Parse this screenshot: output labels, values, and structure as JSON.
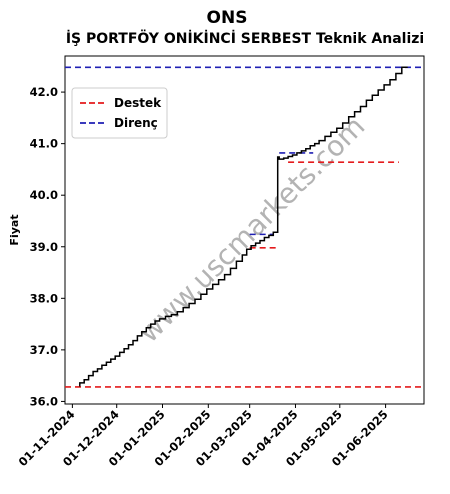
{
  "chart_data": {
    "type": "line",
    "title": "ONS",
    "subtitle": "İŞ PORTFÖY ONİKİNCİ SERBEST Teknik Analizi",
    "xlabel": "",
    "ylabel": "Fiyat",
    "ylim": [
      35.95,
      42.7
    ],
    "xlim": [
      "2024-10-27",
      "2025-06-27"
    ],
    "yticks": [
      36.0,
      37.0,
      38.0,
      39.0,
      40.0,
      41.0,
      42.0
    ],
    "ytick_labels": [
      "36.0",
      "37.0",
      "38.0",
      "39.0",
      "40.0",
      "41.0",
      "42.0"
    ],
    "xticks": [
      "2024-11-01",
      "2024-12-01",
      "2025-01-01",
      "2025-02-01",
      "2025-03-01",
      "2025-04-01",
      "2025-05-01",
      "2025-06-01"
    ],
    "xtick_labels": [
      "01-11-2024",
      "01-12-2024",
      "01-01-2025",
      "01-02-2025",
      "01-03-2025",
      "01-04-2025",
      "01-05-2025",
      "01-06-2025"
    ],
    "grid": false,
    "legend": {
      "placement": "upper-left",
      "entries": [
        {
          "label": "Destek",
          "color": "#e41a1c",
          "style": "dashed"
        },
        {
          "label": "Direnç",
          "color": "#1f1fb4",
          "style": "dashed"
        }
      ]
    },
    "series": [
      {
        "color": "#000000",
        "points": [
          [
            "2024-11-06",
            36.29
          ],
          [
            "2024-11-09",
            36.36
          ],
          [
            "2024-11-12",
            36.42
          ],
          [
            "2024-11-15",
            36.5
          ],
          [
            "2024-11-18",
            36.58
          ],
          [
            "2024-11-21",
            36.63
          ],
          [
            "2024-11-24",
            36.7
          ],
          [
            "2024-11-27",
            36.76
          ],
          [
            "2024-11-30",
            36.82
          ],
          [
            "2024-12-03",
            36.88
          ],
          [
            "2024-12-06",
            36.95
          ],
          [
            "2024-12-09",
            37.02
          ],
          [
            "2024-12-12",
            37.1
          ],
          [
            "2024-12-15",
            37.18
          ],
          [
            "2024-12-18",
            37.27
          ],
          [
            "2024-12-21",
            37.35
          ],
          [
            "2024-12-24",
            37.43
          ],
          [
            "2024-12-27",
            37.5
          ],
          [
            "2024-12-30",
            37.56
          ],
          [
            "2025-01-03",
            37.6
          ],
          [
            "2025-01-07",
            37.65
          ],
          [
            "2025-01-11",
            37.68
          ],
          [
            "2025-01-15",
            37.74
          ],
          [
            "2025-01-19",
            37.82
          ],
          [
            "2025-01-23",
            37.9
          ],
          [
            "2025-01-27",
            37.98
          ],
          [
            "2025-01-31",
            38.08
          ],
          [
            "2025-02-04",
            38.18
          ],
          [
            "2025-02-08",
            38.27
          ],
          [
            "2025-02-12",
            38.36
          ],
          [
            "2025-02-16",
            38.46
          ],
          [
            "2025-02-20",
            38.58
          ],
          [
            "2025-02-24",
            38.72
          ],
          [
            "2025-02-27",
            38.84
          ],
          [
            "2025-03-02",
            38.95
          ],
          [
            "2025-03-05",
            39.02
          ],
          [
            "2025-03-08",
            39.07
          ],
          [
            "2025-03-11",
            39.12
          ],
          [
            "2025-03-14",
            39.18
          ],
          [
            "2025-03-17",
            39.22
          ],
          [
            "2025-03-20",
            39.28
          ],
          [
            "2025-03-21",
            40.74
          ],
          [
            "2025-03-24",
            40.7
          ],
          [
            "2025-03-27",
            40.72
          ],
          [
            "2025-03-30",
            40.75
          ],
          [
            "2025-04-02",
            40.78
          ],
          [
            "2025-04-05",
            40.82
          ],
          [
            "2025-04-08",
            40.86
          ],
          [
            "2025-04-11",
            40.9
          ],
          [
            "2025-04-14",
            40.96
          ],
          [
            "2025-04-17",
            41.0
          ],
          [
            "2025-04-21",
            41.06
          ],
          [
            "2025-04-25",
            41.14
          ],
          [
            "2025-04-29",
            41.22
          ],
          [
            "2025-05-03",
            41.3
          ],
          [
            "2025-05-07",
            41.4
          ],
          [
            "2025-05-11",
            41.52
          ],
          [
            "2025-05-15",
            41.62
          ],
          [
            "2025-05-19",
            41.72
          ],
          [
            "2025-05-23",
            41.84
          ],
          [
            "2025-05-27",
            41.94
          ],
          [
            "2025-05-31",
            42.04
          ],
          [
            "2025-06-04",
            42.14
          ],
          [
            "2025-06-08",
            42.24
          ],
          [
            "2025-06-12",
            42.36
          ],
          [
            "2025-06-16",
            42.48
          ]
        ]
      }
    ],
    "support_lines": [
      {
        "from": "2024-10-27",
        "to": "2025-06-27",
        "value": 36.28,
        "color": "#e41a1c"
      },
      {
        "from": "2025-03-01",
        "to": "2025-03-20",
        "value": 38.98,
        "color": "#e41a1c"
      },
      {
        "from": "2025-03-27",
        "to": "2025-06-10",
        "value": 40.64,
        "color": "#e41a1c"
      }
    ],
    "resistance_lines": [
      {
        "from": "2024-10-27",
        "to": "2025-06-27",
        "value": 42.48,
        "color": "#1f1fb4"
      },
      {
        "from": "2025-03-01",
        "to": "2025-03-17",
        "value": 39.24,
        "color": "#1f1fb4"
      },
      {
        "from": "2025-03-21",
        "to": "2025-04-13",
        "value": 40.82,
        "color": "#1f1fb4"
      }
    ],
    "watermark": "www.uscmarkets.com"
  }
}
